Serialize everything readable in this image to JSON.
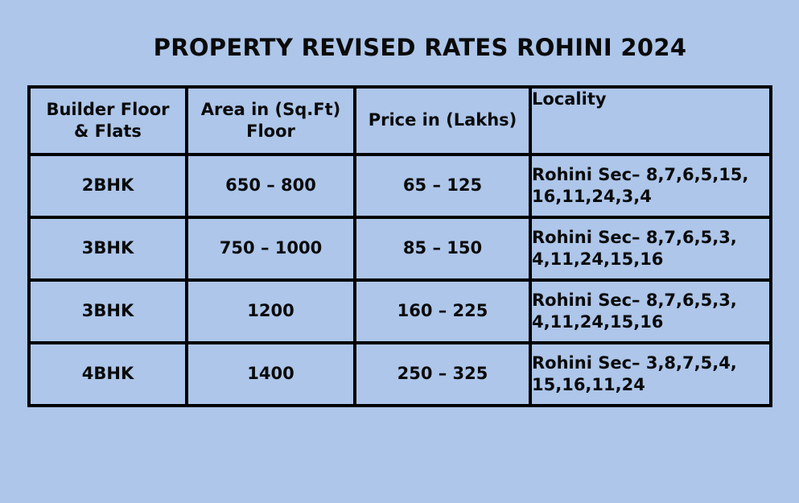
{
  "title": "PROPERTY REVISED RATES ROHINI 2024",
  "table": {
    "headers": [
      [
        "Builder Floor",
        "& Flats"
      ],
      [
        "Area in (Sq.Ft)",
        "Floor"
      ],
      [
        "Price in (Lakhs)"
      ],
      [
        "Locality"
      ]
    ],
    "rows": [
      {
        "type": "2BHK",
        "area": "650 – 800",
        "price": "65 – 125",
        "locality": [
          "Rohini Sec– 8,7,6,5,15,",
          "16,11,24,3,4"
        ]
      },
      {
        "type": "3BHK",
        "area": "750 – 1000",
        "price": "85 – 150",
        "locality": [
          "Rohini Sec– 8,7,6,5,3,",
          "4,11,24,15,16"
        ]
      },
      {
        "type": "3BHK",
        "area": "1200",
        "price": "160 – 225",
        "locality": [
          "Rohini Sec– 8,7,6,5,3,",
          "4,11,24,15,16"
        ]
      },
      {
        "type": "4BHK",
        "area": "1400",
        "price": "250 – 325",
        "locality": [
          "Rohini Sec– 3,8,7,5,4,",
          "15,16,11,24"
        ]
      }
    ]
  },
  "colors": {
    "background": "#adc6ea",
    "border": "#000000",
    "text": "#0a0a0a"
  }
}
